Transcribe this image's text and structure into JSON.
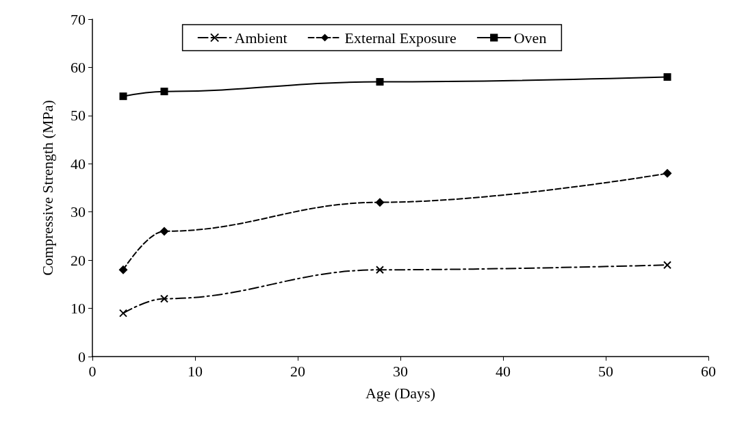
{
  "chart_data": {
    "type": "line",
    "xlabel": "Age (Days)",
    "ylabel": "Compressive Strength (MPa)",
    "x": [
      3,
      7,
      28,
      56
    ],
    "series": [
      {
        "name": "Ambient",
        "color": "#000000",
        "values": [
          9,
          12,
          18,
          19
        ],
        "marker": "cross",
        "line_style": "dashdot"
      },
      {
        "name": "External Exposure",
        "color": "#000000",
        "values": [
          18,
          26,
          32,
          38
        ],
        "marker": "diamond",
        "line_style": "dashed"
      },
      {
        "name": "Oven",
        "color": "#000000",
        "values": [
          54,
          55,
          57,
          58
        ],
        "marker": "square",
        "line_style": "solid"
      }
    ],
    "xlim": [
      0,
      60
    ],
    "xticks": [
      0,
      10,
      20,
      30,
      40,
      50,
      60
    ],
    "ylim": [
      0,
      70
    ],
    "yticks": [
      0,
      10,
      20,
      30,
      40,
      50,
      60,
      70
    ],
    "grid": false,
    "legend": "top"
  }
}
